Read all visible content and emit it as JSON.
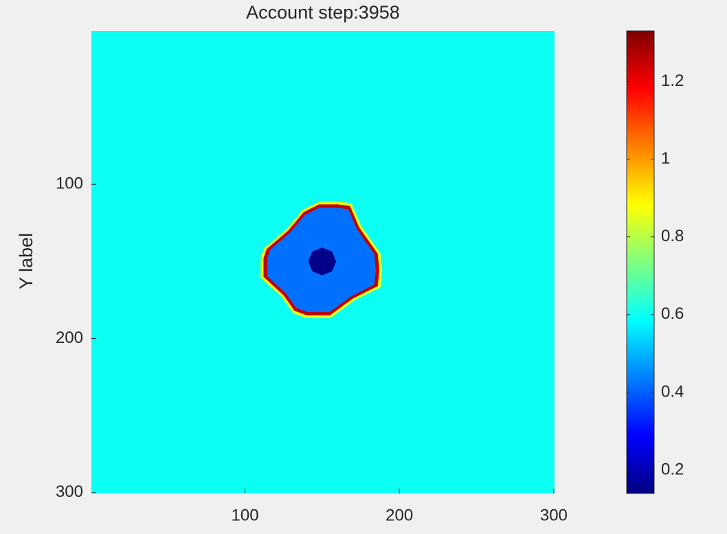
{
  "chart_data": {
    "type": "image",
    "title": "Account step:3958",
    "ylabel": "Y label",
    "colormap": "jet",
    "clim": [
      0.14,
      1.33
    ],
    "xlim": [
      0.5,
      300.5
    ],
    "ylim": [
      0.5,
      300.5
    ],
    "y_reversed": true,
    "xticks": [
      100,
      200,
      300
    ],
    "yticks": [
      100,
      200,
      300
    ],
    "cticks": [
      0.2,
      0.4,
      0.6,
      0.8,
      1,
      1.2
    ],
    "background": 0.6,
    "shapes": [
      {
        "value": 0.85,
        "x": [
          148,
          160.5,
          168.9,
          175.2,
          187.8,
          188.9,
          187.8,
          171,
          155.3,
          139.5,
          131.1,
          123.8,
          110.1,
          110.1,
          112.2,
          126.9,
          137.4
        ],
        "y": [
          111.2,
          111.2,
          112.2,
          126.9,
          144.8,
          156.3,
          166.8,
          175.2,
          186.8,
          186.8,
          183.6,
          173.1,
          160.5,
          147.9,
          141.6,
          129,
          116.4
        ]
      },
      {
        "value": 1.25,
        "x": [
          148,
          160,
          168,
          174,
          186,
          187,
          186,
          170,
          155,
          140,
          132,
          125,
          112,
          112,
          114,
          128,
          138
        ],
        "y": [
          113,
          113,
          114,
          128,
          145,
          156,
          166,
          174,
          185,
          185,
          182,
          172,
          160,
          148,
          142,
          130,
          118
        ]
      },
      {
        "value": 0.42,
        "x": [
          148.1,
          159.4,
          166.9,
          172.6,
          183.8,
          184.8,
          183.8,
          168.8,
          154.7,
          140.6,
          133.1,
          126.5,
          114.3,
          114.3,
          116.2,
          129.3,
          138.7
        ],
        "y": [
          115.2,
          115.2,
          116.2,
          129.3,
          145.3,
          155.6,
          165,
          172.6,
          182.9,
          182.9,
          180.1,
          170.7,
          159.4,
          148.1,
          142.5,
          131.2,
          119.9
        ]
      },
      {
        "value": 0.15,
        "x": [
          159,
          156.4,
          150,
          143.6,
          141,
          143.6,
          150,
          156.4
        ],
        "y": [
          150,
          156.4,
          159,
          156.4,
          150,
          143.6,
          141,
          143.6
        ]
      }
    ]
  }
}
